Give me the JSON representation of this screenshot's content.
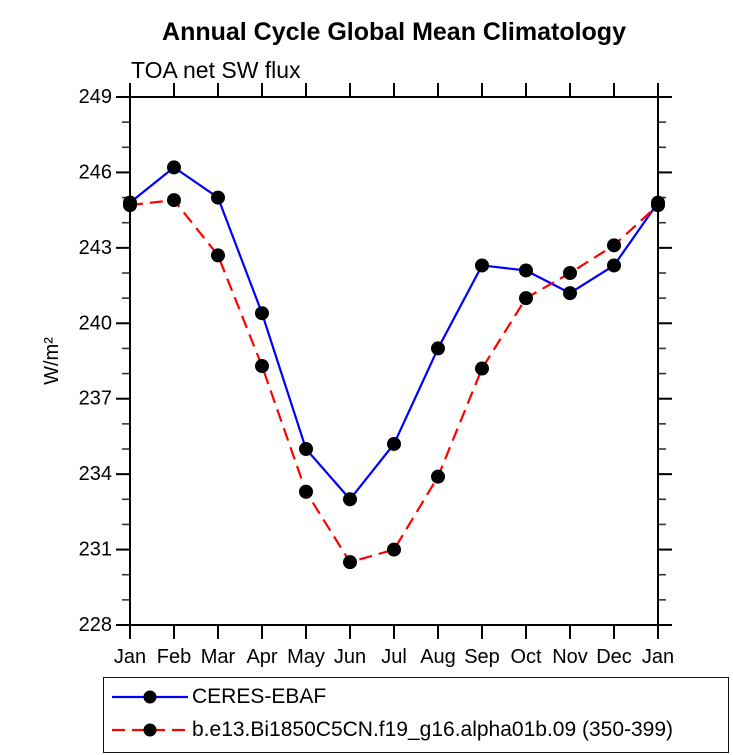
{
  "chart_data": {
    "type": "line",
    "title": "Annual Cycle Global Mean Climatology",
    "subtitle": "TOA net SW flux",
    "ylabel": "W/m²",
    "categories": [
      "Jan",
      "Feb",
      "Mar",
      "Apr",
      "May",
      "Jun",
      "Jul",
      "Aug",
      "Sep",
      "Oct",
      "Nov",
      "Dec",
      "Jan"
    ],
    "ylim": [
      228,
      249
    ],
    "ytick_step": 3,
    "yminor_step": 1,
    "yticks": [
      228,
      231,
      234,
      237,
      240,
      243,
      246,
      249
    ],
    "grid": false,
    "legend_position": "bottom",
    "marker": {
      "shape": "circle",
      "color": "#000000",
      "radius": 7
    },
    "axis_color": "#000000",
    "background_color": "#ffffff",
    "series": [
      {
        "name": "CERES-EBAF",
        "color": "#0000ff",
        "line_style": "solid",
        "values": [
          244.8,
          246.2,
          245.0,
          240.4,
          235.0,
          233.0,
          235.2,
          239.0,
          242.3,
          242.1,
          241.2,
          242.3,
          244.8
        ]
      },
      {
        "name": "b.e13.Bi1850C5CN.f19_g16.alpha01b.09 (350-399)",
        "color": "#ff0000",
        "line_style": "dashed",
        "values": [
          244.7,
          244.9,
          242.7,
          238.3,
          233.3,
          230.5,
          231.0,
          233.9,
          238.2,
          241.0,
          242.0,
          243.1,
          244.7
        ]
      }
    ]
  }
}
